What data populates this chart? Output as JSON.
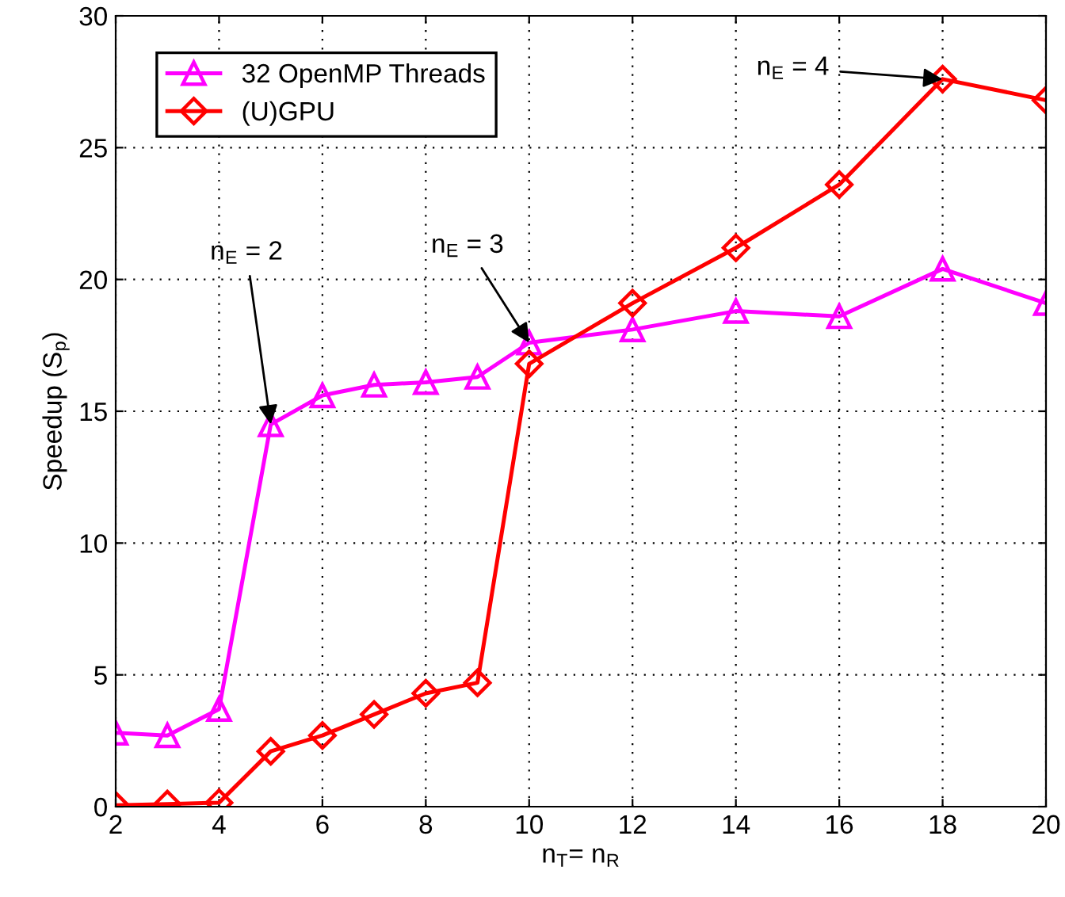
{
  "chart_data": {
    "type": "line",
    "xlabel": "n$_{T}$= n$_{R}$",
    "ylabel": "Speedup (S$_{p}$)",
    "x": [
      2,
      3,
      4,
      5,
      6,
      7,
      8,
      9,
      10,
      12,
      14,
      16,
      18,
      20
    ],
    "series": [
      {
        "name": "32 OpenMP Threads",
        "color": "#ff00ff",
        "marker": "triangle",
        "values": [
          2.8,
          2.7,
          3.7,
          14.5,
          15.6,
          16.0,
          16.1,
          16.3,
          17.6,
          18.1,
          18.8,
          18.6,
          20.4,
          19.1
        ]
      },
      {
        "name": "(U)GPU",
        "color": "#ff0000",
        "marker": "diamond",
        "values": [
          0.05,
          0.1,
          0.15,
          2.1,
          2.7,
          3.5,
          4.3,
          4.7,
          16.8,
          19.1,
          21.2,
          23.6,
          27.6,
          26.8
        ]
      }
    ],
    "xlim": [
      2,
      20
    ],
    "xticks": [
      2,
      4,
      6,
      8,
      10,
      12,
      14,
      16,
      18,
      20
    ],
    "ylim": [
      0,
      30
    ],
    "yticks": [
      0,
      5,
      10,
      15,
      20,
      25,
      30
    ],
    "grid": true,
    "legend": "top left",
    "line_style": "solid",
    "annotations": [
      {
        "text": "n$_{E}$ = 2",
        "x": 5,
        "y": 14.5
      },
      {
        "text": "n$_{E}$ = 3",
        "x": 10,
        "y": 17.6
      },
      {
        "text": "n$_{E}$ = 4",
        "x": 18,
        "y": 27.6
      }
    ]
  }
}
